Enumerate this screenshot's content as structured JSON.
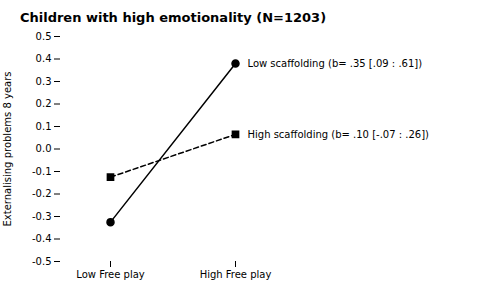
{
  "chart_data": {
    "type": "line",
    "title": "Children with high emotionality (N=1203)",
    "ylabel": "Externalising problems 8 years",
    "categories": [
      "Low Free play",
      "High Free play"
    ],
    "series": [
      {
        "name": "Low scaffolding",
        "color": "#000000",
        "marker": "circle",
        "line_style": "solid",
        "values": [
          -0.325,
          0.38
        ],
        "annotation": "Low scaffolding (b= .35 [.09 : .61])"
      },
      {
        "name": "High scaffolding",
        "color": "#000000",
        "marker": "square",
        "line_style": "dashed",
        "values": [
          -0.125,
          0.065
        ],
        "annotation": "High scaffolding (b= .10 [-.07 : .26])"
      }
    ],
    "ylim": [
      -0.5,
      0.5
    ],
    "yticks": [
      -0.5,
      -0.4,
      -0.3,
      -0.2,
      -0.1,
      {
        "value": 0.0,
        "label": "0.0"
      },
      0.1,
      0.2,
      0.3,
      0.4,
      0.5
    ],
    "grid": false
  }
}
